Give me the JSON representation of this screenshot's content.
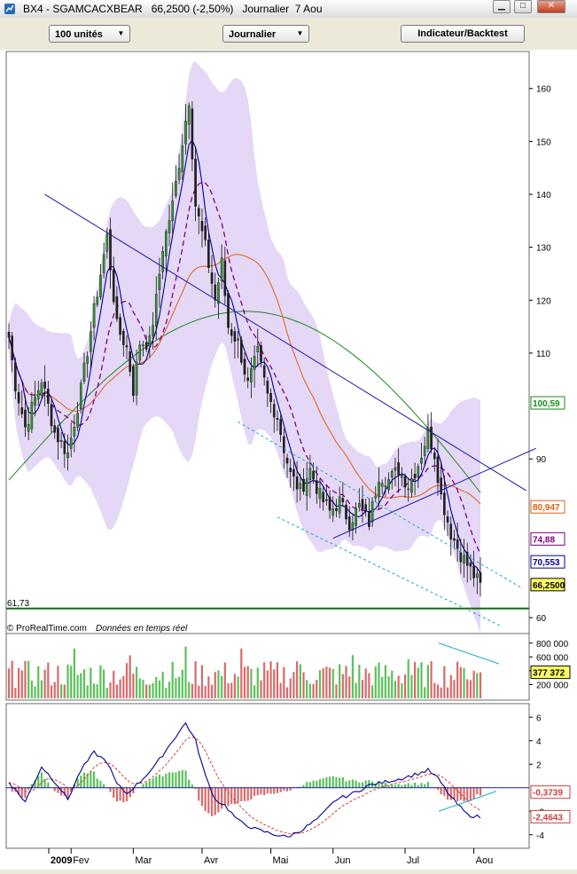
{
  "window": {
    "title": "BX4 - SGAMCACXBEAR   66,2500 (-2,50%)   Journalier  7 Aou"
  },
  "toolbar": {
    "units_label": "100 unités",
    "period_label": "Journalier",
    "indicator_label": "Indicateur/Backtest"
  },
  "credits": {
    "source": "© ProRealTime.com",
    "note": "Données en temps réel"
  },
  "colors": {
    "up_candle": "#2e9a2e",
    "down_candle": "#222222",
    "bollinger_fill": "#e2d3f5",
    "ma_orange": "#e06010",
    "ma_green": "#1a8a1a",
    "ma_navy": "#000090",
    "ma_purple_dashed": "#800080",
    "trend_navy": "#1a1aa0",
    "channel_cyan": "#1aa8c8",
    "vol_up": "#5ac15a",
    "vol_down": "#d86a6a"
  },
  "chart_data": [
    {
      "type": "candlestick",
      "x_tick_labels": [
        "2009",
        "Fev",
        "Mar",
        "Avr",
        "Mai",
        "Jun",
        "Jul",
        "Aou"
      ],
      "ylim": [
        57,
        167
      ],
      "y_ticks": [
        60,
        90,
        110,
        120,
        130,
        140,
        150,
        160
      ],
      "y_tick_labels": [
        "60",
        "90",
        "110",
        "120",
        "130",
        "140",
        "150",
        "160"
      ],
      "last_price": 66.25,
      "last_price_label": "66,2500",
      "support_value": 61.73,
      "support_label": "61,73",
      "indicator_values": [
        {
          "label": "100,59",
          "value": 100.59,
          "color": "#1a8a1a"
        },
        {
          "label": "80,947",
          "value": 80.947,
          "color": "#e06010"
        },
        {
          "label": "74,88",
          "value": 74.88,
          "color": "#800080"
        },
        {
          "label": "70,553",
          "value": 70.553,
          "color": "#000090"
        },
        {
          "label": "66,2500",
          "value": 66.25,
          "color": "#000000"
        }
      ],
      "close_anchors": [
        [
          0,
          113
        ],
        [
          2,
          104
        ],
        [
          5,
          96
        ],
        [
          10,
          105
        ],
        [
          14,
          95
        ],
        [
          18,
          91
        ],
        [
          22,
          103
        ],
        [
          26,
          118
        ],
        [
          30,
          132
        ],
        [
          33,
          115
        ],
        [
          36,
          111
        ],
        [
          38,
          103
        ],
        [
          40,
          112
        ],
        [
          43,
          112
        ],
        [
          45,
          120
        ],
        [
          47,
          130
        ],
        [
          50,
          138
        ],
        [
          53,
          150
        ],
        [
          55,
          158
        ],
        [
          57,
          138
        ],
        [
          60,
          130
        ],
        [
          63,
          120
        ],
        [
          65,
          127
        ],
        [
          67,
          115
        ],
        [
          70,
          112
        ],
        [
          73,
          104
        ],
        [
          76,
          110
        ],
        [
          79,
          102
        ],
        [
          82,
          98
        ],
        [
          84,
          92
        ],
        [
          86,
          87
        ],
        [
          89,
          84
        ],
        [
          92,
          88
        ],
        [
          95,
          83
        ],
        [
          98,
          80
        ],
        [
          101,
          82
        ],
        [
          104,
          78
        ],
        [
          107,
          81
        ],
        [
          110,
          78
        ],
        [
          113,
          87
        ],
        [
          116,
          86
        ],
        [
          119,
          88
        ],
        [
          122,
          85
        ],
        [
          125,
          89
        ],
        [
          128,
          95
        ],
        [
          130,
          91
        ],
        [
          132,
          83
        ],
        [
          135,
          76
        ],
        [
          138,
          72
        ],
        [
          141,
          69
        ],
        [
          144,
          66
        ]
      ]
    },
    {
      "type": "bar",
      "name": "volume",
      "y_ticks": [
        200000,
        400000,
        600000,
        800000
      ],
      "y_tick_labels": [
        "200 000",
        "400 000",
        "600 000",
        "800 000"
      ],
      "ylim": [
        0,
        900000
      ],
      "last_volume": 377372,
      "last_volume_label": "377 372"
    },
    {
      "type": "line",
      "name": "macd",
      "y_ticks": [
        -4,
        -2,
        2,
        4,
        6
      ],
      "y_tick_labels": [
        "-4",
        "-2",
        "2",
        "4",
        "6"
      ],
      "ylim": [
        -5,
        7
      ],
      "macd_value": -0.3739,
      "macd_label": "-0,3739",
      "signal_value": -2.4643,
      "signal_label": "-2,4643",
      "macd_anchors": [
        [
          0,
          0.5
        ],
        [
          5,
          -1.2
        ],
        [
          10,
          1.8
        ],
        [
          15,
          0.2
        ],
        [
          18,
          -1
        ],
        [
          22,
          1.5
        ],
        [
          26,
          3
        ],
        [
          30,
          2.2
        ],
        [
          33,
          0.3
        ],
        [
          36,
          -0.5
        ],
        [
          40,
          0.5
        ],
        [
          45,
          2
        ],
        [
          50,
          4
        ],
        [
          54,
          5.5
        ],
        [
          57,
          4
        ],
        [
          60,
          1
        ],
        [
          63,
          -1
        ],
        [
          66,
          -1.5
        ],
        [
          70,
          -2.8
        ],
        [
          75,
          -3.5
        ],
        [
          80,
          -3.9
        ],
        [
          85,
          -4.2
        ],
        [
          90,
          -3.5
        ],
        [
          95,
          -2.5
        ],
        [
          100,
          -1
        ],
        [
          105,
          -0.5
        ],
        [
          110,
          0.2
        ],
        [
          115,
          0.5
        ],
        [
          120,
          0.8
        ],
        [
          125,
          1.2
        ],
        [
          128,
          1.5
        ],
        [
          131,
          0.8
        ],
        [
          135,
          -0.8
        ],
        [
          140,
          -2.3
        ],
        [
          144,
          -2.5
        ]
      ]
    }
  ]
}
